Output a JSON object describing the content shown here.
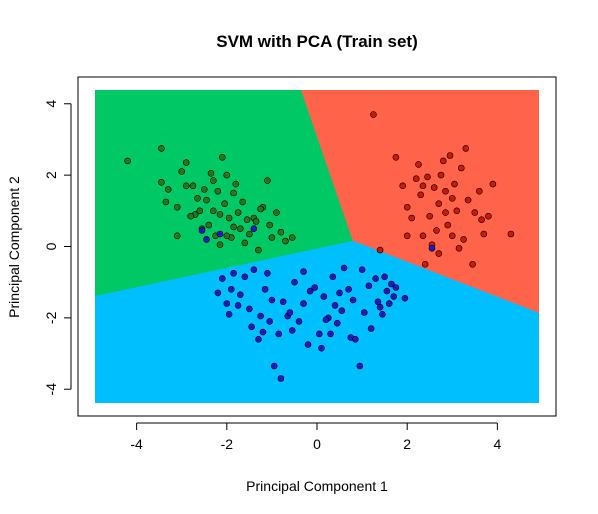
{
  "chart_data": {
    "type": "scatter",
    "title": "SVM with PCA (Train set)",
    "xlabel": "Principal Component 1",
    "ylabel": "Principal Component 2",
    "xlim": [
      -5.3,
      5.3
    ],
    "ylim": [
      -4.75,
      4.75
    ],
    "x_ticks": [
      -4,
      -2,
      0,
      2,
      4
    ],
    "y_ticks": [
      -4,
      -2,
      0,
      2,
      4
    ],
    "grid": false,
    "colors": {
      "green_region": "#00C864",
      "red_region": "#FF634A",
      "blue_region": "#00BFFF",
      "green_point": "#1f7a1f",
      "red_point": "#cc1a00",
      "blue_point": "#1a1acc"
    },
    "regions": {
      "green": [
        [
          -5.3,
          4.75
        ],
        [
          -0.45,
          4.75
        ],
        [
          0.8,
          0.15
        ],
        [
          -5.3,
          -1.5
        ]
      ],
      "red": [
        [
          -0.45,
          4.75
        ],
        [
          5.3,
          4.75
        ],
        [
          5.3,
          -2.05
        ],
        [
          0.8,
          0.15
        ]
      ],
      "blue": [
        [
          -5.3,
          -1.5
        ],
        [
          0.8,
          0.15
        ],
        [
          5.3,
          -2.05
        ],
        [
          5.3,
          -4.75
        ],
        [
          -5.3,
          -4.75
        ]
      ]
    },
    "series": [
      {
        "class": "green",
        "points": [
          [
            -4.2,
            2.4
          ],
          [
            -3.45,
            2.75
          ],
          [
            -3.45,
            1.8
          ],
          [
            -3.3,
            1.6
          ],
          [
            -3.1,
            1.1
          ],
          [
            -3.0,
            2.1
          ],
          [
            -2.9,
            2.35
          ],
          [
            -2.75,
            1.7
          ],
          [
            -2.7,
            0.9
          ],
          [
            -2.65,
            1.35
          ],
          [
            -2.6,
            1.0
          ],
          [
            -2.5,
            1.6
          ],
          [
            -2.45,
            1.3
          ],
          [
            -2.4,
            0.6
          ],
          [
            -2.35,
            2.05
          ],
          [
            -2.3,
            1.85
          ],
          [
            -2.25,
            0.3
          ],
          [
            -2.2,
            1.55
          ],
          [
            -2.15,
            0.9
          ],
          [
            -2.1,
            2.5
          ],
          [
            -2.05,
            1.2
          ],
          [
            -2.0,
            2.0
          ],
          [
            -1.95,
            0.8
          ],
          [
            -1.9,
            0.25
          ],
          [
            -1.85,
            1.5
          ],
          [
            -1.8,
            1.75
          ],
          [
            -1.75,
            0.95
          ],
          [
            -1.7,
            0.5
          ],
          [
            -1.6,
            0.1
          ],
          [
            -1.5,
            0.35
          ],
          [
            -1.4,
            0.8
          ],
          [
            -1.35,
            0.7
          ],
          [
            -1.3,
            -0.1
          ],
          [
            -1.2,
            1.1
          ],
          [
            -1.1,
            1.85
          ],
          [
            -1.05,
            0.6
          ],
          [
            -1.0,
            0.25
          ],
          [
            -0.9,
            0.95
          ],
          [
            -0.8,
            0.4
          ],
          [
            -0.7,
            0.15
          ],
          [
            -0.55,
            0.25
          ],
          [
            -3.1,
            0.3
          ],
          [
            -2.8,
            0.85
          ],
          [
            -2.55,
            0.5
          ],
          [
            -2.0,
            0.3
          ],
          [
            -1.65,
            1.25
          ],
          [
            -2.9,
            1.7
          ],
          [
            -2.3,
            1.0
          ],
          [
            -1.85,
            0.55
          ],
          [
            -3.35,
            1.25
          ],
          [
            -2.15,
            0.05
          ],
          [
            -1.55,
            0.75
          ],
          [
            -1.25,
            1.05
          ]
        ]
      },
      {
        "class": "red",
        "points": [
          [
            1.25,
            3.7
          ],
          [
            1.4,
            -0.1
          ],
          [
            1.75,
            2.5
          ],
          [
            1.9,
            1.7
          ],
          [
            2.0,
            1.1
          ],
          [
            2.1,
            0.8
          ],
          [
            2.2,
            1.9
          ],
          [
            2.25,
            2.3
          ],
          [
            2.3,
            1.45
          ],
          [
            2.35,
            0.3
          ],
          [
            2.4,
            -0.5
          ],
          [
            2.5,
            0.85
          ],
          [
            2.55,
            0.05
          ],
          [
            2.6,
            1.65
          ],
          [
            2.65,
            0.45
          ],
          [
            2.7,
            1.2
          ],
          [
            2.75,
            2.0
          ],
          [
            2.8,
            2.4
          ],
          [
            2.85,
            1.55
          ],
          [
            2.9,
            0.6
          ],
          [
            2.95,
            2.55
          ],
          [
            3.0,
            0.3
          ],
          [
            3.05,
            1.75
          ],
          [
            3.1,
            1.0
          ],
          [
            3.15,
            -0.05
          ],
          [
            3.2,
            2.2
          ],
          [
            3.25,
            0.2
          ],
          [
            3.3,
            2.75
          ],
          [
            3.35,
            1.3
          ],
          [
            3.45,
            -0.5
          ],
          [
            3.5,
            0.95
          ],
          [
            3.6,
            1.55
          ],
          [
            3.65,
            0.75
          ],
          [
            3.7,
            0.35
          ],
          [
            3.8,
            0.85
          ],
          [
            3.9,
            1.75
          ],
          [
            4.3,
            0.35
          ],
          [
            2.0,
            0.3
          ],
          [
            2.45,
            1.95
          ],
          [
            2.7,
            -0.2
          ],
          [
            3.0,
            1.35
          ],
          [
            2.35,
            1.7
          ],
          [
            2.85,
            0.95
          ]
        ]
      },
      {
        "class": "blue",
        "points": [
          [
            -2.55,
            0.45
          ],
          [
            -2.45,
            0.2
          ],
          [
            -2.2,
            -1.3
          ],
          [
            -2.1,
            -0.9
          ],
          [
            -2.0,
            -1.6
          ],
          [
            -1.95,
            -1.9
          ],
          [
            -1.9,
            -1.2
          ],
          [
            -1.85,
            -0.75
          ],
          [
            -1.75,
            -1.65
          ],
          [
            -1.7,
            -1.35
          ],
          [
            -1.6,
            -0.85
          ],
          [
            -1.5,
            -1.75
          ],
          [
            -1.45,
            -2.25
          ],
          [
            -1.4,
            -0.65
          ],
          [
            -1.3,
            -2.6
          ],
          [
            -1.25,
            -1.95
          ],
          [
            -1.2,
            -2.4
          ],
          [
            -1.15,
            -1.2
          ],
          [
            -1.05,
            -2.1
          ],
          [
            -1.0,
            -1.5
          ],
          [
            -0.95,
            -3.35
          ],
          [
            -0.85,
            -2.45
          ],
          [
            -0.8,
            -3.7
          ],
          [
            -0.75,
            -1.55
          ],
          [
            -0.65,
            -1.95
          ],
          [
            -0.55,
            -2.35
          ],
          [
            -0.5,
            -1.0
          ],
          [
            -0.4,
            -2.1
          ],
          [
            -0.3,
            -1.6
          ],
          [
            -0.2,
            -2.75
          ],
          [
            -0.15,
            -1.25
          ],
          [
            -0.05,
            -1.15
          ],
          [
            0.05,
            -2.45
          ],
          [
            0.1,
            -2.85
          ],
          [
            0.15,
            -1.4
          ],
          [
            0.25,
            -2.0
          ],
          [
            0.3,
            -2.45
          ],
          [
            0.35,
            -0.85
          ],
          [
            0.45,
            -2.15
          ],
          [
            0.55,
            -1.8
          ],
          [
            0.6,
            -0.6
          ],
          [
            0.7,
            -1.2
          ],
          [
            0.75,
            -2.55
          ],
          [
            0.8,
            -1.5
          ],
          [
            0.85,
            -2.6
          ],
          [
            0.95,
            -3.35
          ],
          [
            1.0,
            -0.65
          ],
          [
            1.05,
            -1.85
          ],
          [
            1.15,
            -1.1
          ],
          [
            1.2,
            -2.3
          ],
          [
            1.3,
            -0.9
          ],
          [
            1.35,
            -1.55
          ],
          [
            1.45,
            -1.9
          ],
          [
            1.5,
            -0.85
          ],
          [
            1.55,
            -1.25
          ],
          [
            1.6,
            -1.6
          ],
          [
            1.65,
            -1.05
          ],
          [
            1.7,
            -1.4
          ],
          [
            1.75,
            -1.15
          ],
          [
            1.95,
            -1.45
          ],
          [
            -1.1,
            -0.75
          ],
          [
            -0.6,
            -1.85
          ],
          [
            0.4,
            -1.65
          ],
          [
            1.4,
            -1.7
          ],
          [
            0.5,
            -1.3
          ],
          [
            -2.15,
            0.35
          ],
          [
            2.55,
            -0.05
          ],
          [
            -1.4,
            0.5
          ],
          [
            -0.3,
            -0.7
          ],
          [
            0.2,
            -2.05
          ]
        ]
      }
    ]
  }
}
